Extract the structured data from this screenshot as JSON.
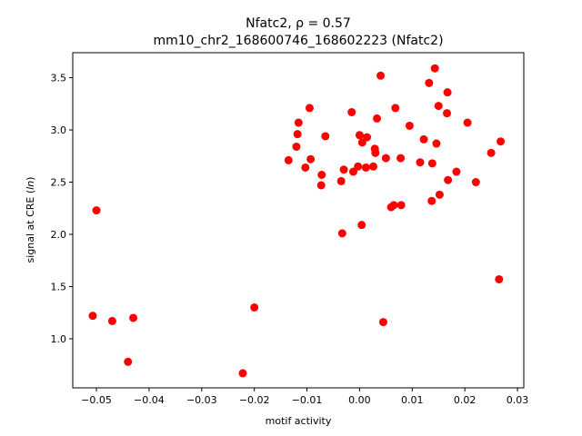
{
  "chart_data": {
    "type": "scatter",
    "title": "Nfatc2, ρ = 0.57",
    "subtitle": "mm10_chr2_168600746_168602223 (Nfatc2)",
    "xlabel": "motif activity",
    "ylabel": "signal at CRE (ln)",
    "xlim": [
      -0.0545,
      0.0312
    ],
    "ylim": [
      0.53,
      3.74
    ],
    "xticks": [
      -0.05,
      -0.04,
      -0.03,
      -0.02,
      -0.01,
      0.0,
      0.01,
      0.02,
      0.03
    ],
    "xtick_labels": [
      "−0.05",
      "−0.04",
      "−0.03",
      "−0.02",
      "−0.01",
      "0.00",
      "0.01",
      "0.02",
      "0.03"
    ],
    "yticks": [
      1.0,
      1.5,
      2.0,
      2.5,
      3.0,
      3.5
    ],
    "ytick_labels": [
      "1.0",
      "1.5",
      "2.0",
      "2.5",
      "3.0",
      "3.5"
    ],
    "grid": false,
    "marker_color": "#ff0000",
    "points": [
      {
        "x": -0.0507,
        "y": 1.22
      },
      {
        "x": -0.05,
        "y": 2.23
      },
      {
        "x": -0.047,
        "y": 1.17
      },
      {
        "x": -0.044,
        "y": 0.78
      },
      {
        "x": -0.043,
        "y": 1.2
      },
      {
        "x": -0.0222,
        "y": 0.67
      },
      {
        "x": -0.02,
        "y": 1.3
      },
      {
        "x": -0.0135,
        "y": 2.71
      },
      {
        "x": -0.012,
        "y": 2.84
      },
      {
        "x": -0.0118,
        "y": 2.96
      },
      {
        "x": -0.0116,
        "y": 3.07
      },
      {
        "x": -0.0103,
        "y": 2.64
      },
      {
        "x": -0.0095,
        "y": 3.21
      },
      {
        "x": -0.0093,
        "y": 2.72
      },
      {
        "x": -0.0073,
        "y": 2.47
      },
      {
        "x": -0.0072,
        "y": 2.57
      },
      {
        "x": -0.0065,
        "y": 2.94
      },
      {
        "x": -0.0035,
        "y": 2.51
      },
      {
        "x": -0.0033,
        "y": 2.01
      },
      {
        "x": -0.003,
        "y": 2.62
      },
      {
        "x": -0.0015,
        "y": 3.17
      },
      {
        "x": -0.0012,
        "y": 2.6
      },
      {
        "x": -0.0003,
        "y": 2.65
      },
      {
        "x": 0.0,
        "y": 2.95
      },
      {
        "x": 0.0004,
        "y": 2.09
      },
      {
        "x": 0.0005,
        "y": 2.88
      },
      {
        "x": 0.0012,
        "y": 2.64
      },
      {
        "x": 0.0014,
        "y": 2.93
      },
      {
        "x": 0.0026,
        "y": 2.65
      },
      {
        "x": 0.0029,
        "y": 2.82
      },
      {
        "x": 0.003,
        "y": 2.78
      },
      {
        "x": 0.0033,
        "y": 3.11
      },
      {
        "x": 0.004,
        "y": 3.52
      },
      {
        "x": 0.0045,
        "y": 1.16
      },
      {
        "x": 0.005,
        "y": 2.73
      },
      {
        "x": 0.006,
        "y": 2.26
      },
      {
        "x": 0.0065,
        "y": 2.28
      },
      {
        "x": 0.0068,
        "y": 3.21
      },
      {
        "x": 0.0078,
        "y": 2.73
      },
      {
        "x": 0.0079,
        "y": 2.28
      },
      {
        "x": 0.0095,
        "y": 3.04
      },
      {
        "x": 0.0115,
        "y": 2.69
      },
      {
        "x": 0.0122,
        "y": 2.91
      },
      {
        "x": 0.0132,
        "y": 3.45
      },
      {
        "x": 0.0137,
        "y": 2.32
      },
      {
        "x": 0.0138,
        "y": 2.68
      },
      {
        "x": 0.0143,
        "y": 3.59
      },
      {
        "x": 0.0146,
        "y": 2.87
      },
      {
        "x": 0.015,
        "y": 3.23
      },
      {
        "x": 0.0152,
        "y": 2.38
      },
      {
        "x": 0.0166,
        "y": 3.16
      },
      {
        "x": 0.0167,
        "y": 3.36
      },
      {
        "x": 0.0168,
        "y": 2.52
      },
      {
        "x": 0.0184,
        "y": 2.6
      },
      {
        "x": 0.0205,
        "y": 3.07
      },
      {
        "x": 0.0221,
        "y": 2.5
      },
      {
        "x": 0.025,
        "y": 2.78
      },
      {
        "x": 0.0265,
        "y": 1.57
      },
      {
        "x": 0.0268,
        "y": 2.89
      }
    ]
  }
}
